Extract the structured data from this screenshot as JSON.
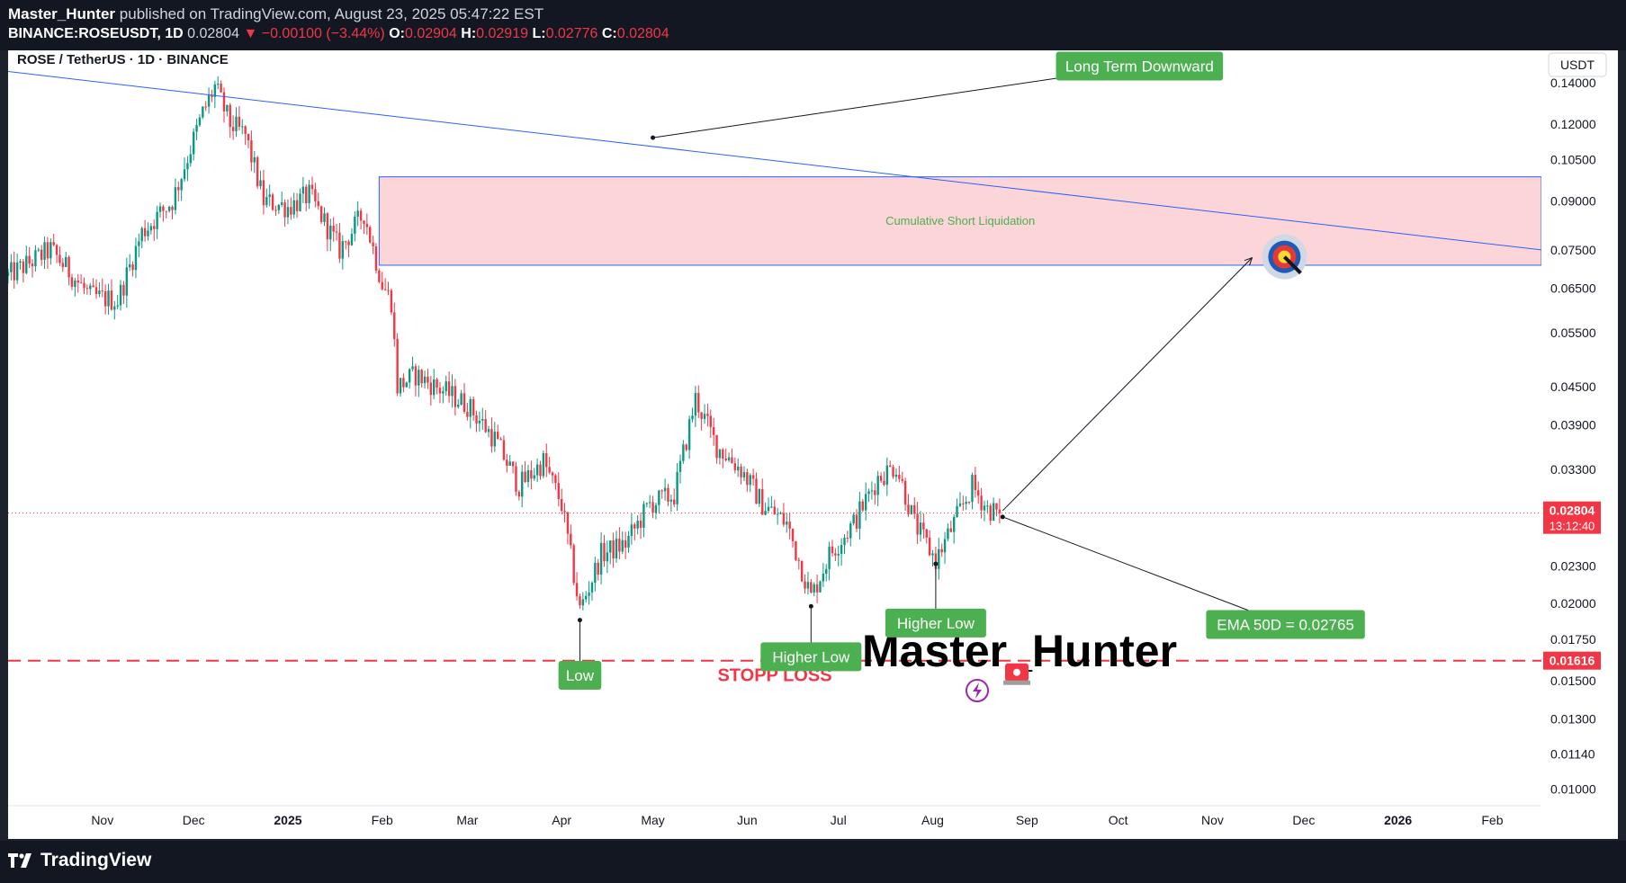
{
  "header": {
    "author": "Master_Hunter",
    "published_text": "published on TradingView.com, August 23, 2025 05:47:22 EST",
    "symbol": "BINANCE:ROSEUSDT, 1D",
    "last": "0.02804",
    "change": "−0.00100 (−3.44%)",
    "o_label": "O:",
    "o": "0.02904",
    "h_label": "H:",
    "h": "0.02919",
    "l_label": "L:",
    "l": "0.02776",
    "c_label": "C:",
    "c": "0.02804"
  },
  "footer": {
    "brand": "TradingView"
  },
  "chart_data": {
    "type": "candlestick",
    "title": "ROSE / TetherUS · 1D · BINANCE",
    "currency": "USDT",
    "y_scale": "log",
    "ylim": [
      0.0094,
      0.158
    ],
    "y_ticks": [
      "0.14000",
      "0.12000",
      "0.10500",
      "0.09000",
      "0.07500",
      "0.06500",
      "0.05500",
      "0.04500",
      "0.03900",
      "0.03300",
      "0.02300",
      "0.02000",
      "0.01750",
      "0.01500",
      "0.01300",
      "0.01140",
      "0.01000"
    ],
    "x_ticks": [
      {
        "label": "Nov",
        "bold": false
      },
      {
        "label": "Dec",
        "bold": false
      },
      {
        "label": "2025",
        "bold": true
      },
      {
        "label": "Feb",
        "bold": false
      },
      {
        "label": "Mar",
        "bold": false
      },
      {
        "label": "Apr",
        "bold": false
      },
      {
        "label": "May",
        "bold": false
      },
      {
        "label": "Jun",
        "bold": false
      },
      {
        "label": "Jul",
        "bold": false
      },
      {
        "label": "Aug",
        "bold": false
      },
      {
        "label": "Sep",
        "bold": false
      },
      {
        "label": "Oct",
        "bold": false
      },
      {
        "label": "Nov",
        "bold": false
      },
      {
        "label": "Dec",
        "bold": false
      },
      {
        "label": "2026",
        "bold": true
      },
      {
        "label": "Feb",
        "bold": false
      }
    ],
    "price_path": [
      [
        "2024-10-01",
        0.068
      ],
      [
        "2024-10-15",
        0.075
      ],
      [
        "2024-10-28",
        0.063
      ],
      [
        "2024-11-06",
        0.062
      ],
      [
        "2024-11-14",
        0.08
      ],
      [
        "2024-11-24",
        0.09
      ],
      [
        "2024-12-04",
        0.125
      ],
      [
        "2024-12-08",
        0.138
      ],
      [
        "2024-12-13",
        0.12
      ],
      [
        "2024-12-18",
        0.115
      ],
      [
        "2024-12-24",
        0.09
      ],
      [
        "2025-01-01",
        0.088
      ],
      [
        "2025-01-08",
        0.092
      ],
      [
        "2025-01-12",
        0.085
      ],
      [
        "2025-01-18",
        0.075
      ],
      [
        "2025-01-26",
        0.086
      ],
      [
        "2025-02-01",
        0.066
      ],
      [
        "2025-02-04",
        0.062
      ],
      [
        "2025-02-06",
        0.045
      ],
      [
        "2025-02-12",
        0.047
      ],
      [
        "2025-02-22",
        0.044
      ],
      [
        "2025-03-01",
        0.042
      ],
      [
        "2025-03-10",
        0.037
      ],
      [
        "2025-03-18",
        0.031
      ],
      [
        "2025-03-26",
        0.034
      ],
      [
        "2025-04-01",
        0.029
      ],
      [
        "2025-04-07",
        0.0195
      ],
      [
        "2025-04-14",
        0.024
      ],
      [
        "2025-04-22",
        0.025
      ],
      [
        "2025-04-30",
        0.029
      ],
      [
        "2025-05-08",
        0.03
      ],
      [
        "2025-05-15",
        0.043
      ],
      [
        "2025-05-22",
        0.036
      ],
      [
        "2025-05-30",
        0.033
      ],
      [
        "2025-06-06",
        0.029
      ],
      [
        "2025-06-14",
        0.027
      ],
      [
        "2025-06-22",
        0.0205
      ],
      [
        "2025-06-28",
        0.024
      ],
      [
        "2025-07-06",
        0.027
      ],
      [
        "2025-07-14",
        0.032
      ],
      [
        "2025-07-20",
        0.0335
      ],
      [
        "2025-07-26",
        0.027
      ],
      [
        "2025-08-02",
        0.0235
      ],
      [
        "2025-08-08",
        0.027
      ],
      [
        "2025-08-14",
        0.031
      ],
      [
        "2025-08-19",
        0.0285
      ],
      [
        "2025-08-23",
        0.02804
      ]
    ],
    "current_price": {
      "value": 0.02804,
      "label": "0.02804",
      "countdown": "13:12:40"
    },
    "stop_loss": {
      "value": 0.01616,
      "label": "0.01616",
      "text": "STOPP LOSS"
    },
    "zone": {
      "from_date": "2025-01-31",
      "low": 0.0708,
      "high": 0.0985,
      "label": "Cumulative Short Liquidation"
    },
    "trendline": {
      "start": [
        "2024-10-01",
        0.146
      ],
      "end": [
        "2026-03-01",
        0.0738
      ]
    },
    "target_arrow": {
      "from": [
        "2025-08-24",
        0.0283
      ],
      "to": [
        "2025-11-14",
        0.0728
      ]
    },
    "annotations": [
      {
        "text": "Long Term Downward",
        "box_at": [
          "2025-10-08",
          0.149
        ],
        "point": [
          "2025-05-01",
          0.114
        ]
      },
      {
        "text": "Low",
        "box_at": [
          "2025-04-07",
          0.0153
        ],
        "point": [
          "2025-04-07",
          0.0188
        ]
      },
      {
        "text": "Higher Low",
        "box_at": [
          "2025-06-22",
          0.0164
        ],
        "point": [
          "2025-06-22",
          0.0198
        ]
      },
      {
        "text": "Higher Low",
        "box_at": [
          "2025-08-02",
          0.0186
        ],
        "point": [
          "2025-08-02",
          0.0232
        ]
      },
      {
        "text": "EMA 50D = 0.02765",
        "box_at": [
          "2025-11-25",
          0.0185
        ],
        "point": [
          "2025-08-24",
          0.02765
        ]
      }
    ],
    "watermark": "Master_Hunter"
  }
}
